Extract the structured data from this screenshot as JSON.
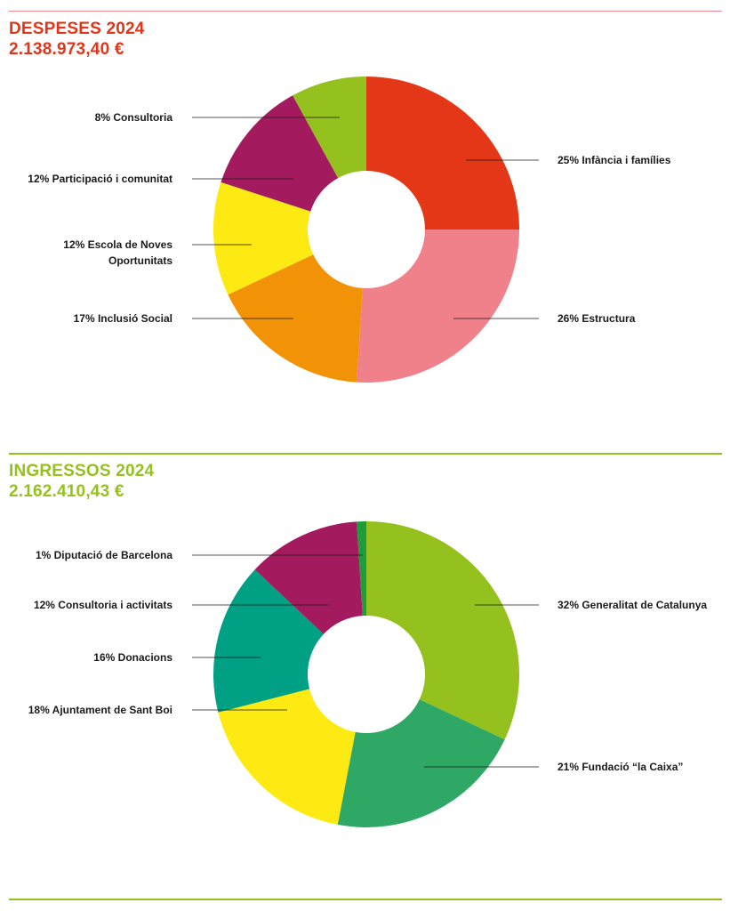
{
  "colors": {
    "expense_accent": "#e0361a",
    "expense_rule": "#f08791",
    "income_accent": "#95c11f",
    "income_rule": "#95c11f"
  },
  "expenses": {
    "title": "DESPESES 2024",
    "total": "2.138.973,40 €"
  },
  "income": {
    "title": "INGRESSOS 2024",
    "total": "2.162.410,43 €"
  },
  "chart_data": [
    {
      "type": "pie",
      "donut": true,
      "title": "DESPESES 2024",
      "slices": [
        {
          "label": "25% Infància i famílies",
          "value": 25,
          "color": "#e33718"
        },
        {
          "label": "26% Estructura",
          "value": 26,
          "color": "#f0808a"
        },
        {
          "label": "17% Inclusió Social",
          "value": 17,
          "color": "#f29206"
        },
        {
          "label": "12% Escola de Noves Oportunitats",
          "label_lines": [
            "12% Escola de Noves",
            "Oportunitats"
          ],
          "value": 12,
          "color": "#fcea12"
        },
        {
          "label": "12% Participació i comunitat",
          "value": 12,
          "color": "#a31b5e"
        },
        {
          "label": "8% Consultoria",
          "value": 8,
          "color": "#95c11f"
        }
      ]
    },
    {
      "type": "pie",
      "donut": true,
      "title": "INGRESSOS 2024",
      "slices": [
        {
          "label": "32% Generalitat de Catalunya",
          "value": 32,
          "color": "#95c11f"
        },
        {
          "label": "21% Fundació “la Caixa”",
          "value": 21,
          "color": "#2fa866"
        },
        {
          "label": "18% Ajuntament de Sant Boi",
          "value": 18,
          "color": "#fcea12"
        },
        {
          "label": "16% Donacions",
          "value": 16,
          "color": "#00a085"
        },
        {
          "label": "12% Consultoria i activitats",
          "value": 12,
          "color": "#a31b5e"
        },
        {
          "label": "1% Diputació de Barcelona",
          "value": 1,
          "color": "#1e9c3c"
        }
      ]
    }
  ]
}
